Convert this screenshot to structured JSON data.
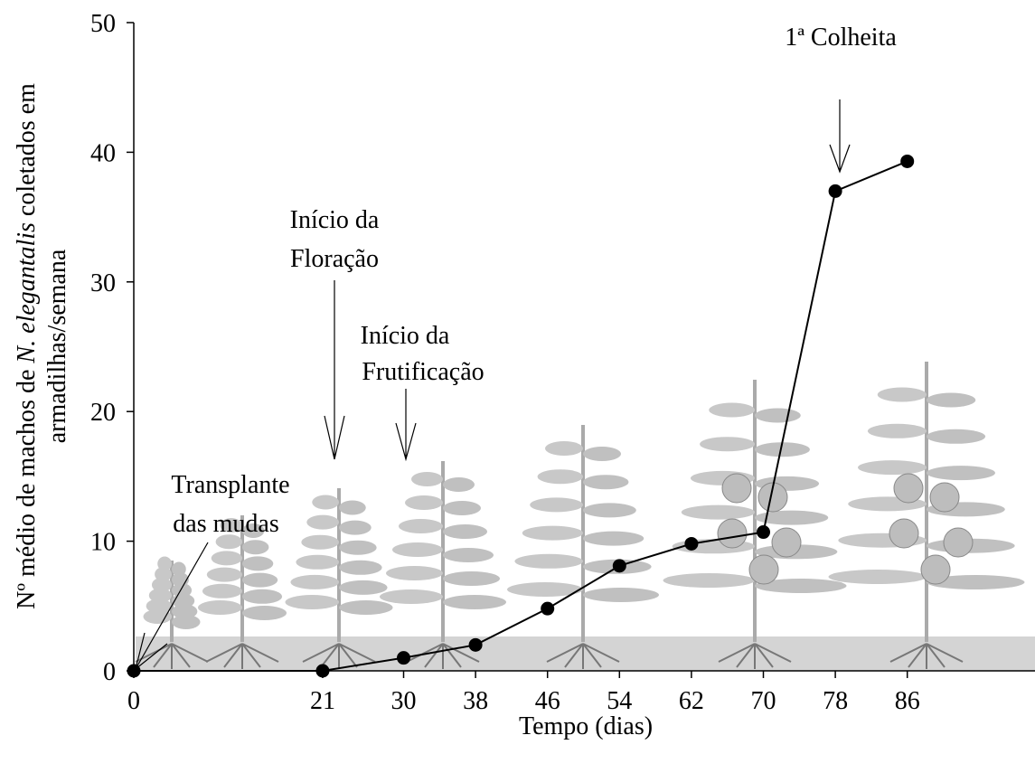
{
  "chart_data": {
    "type": "line",
    "x_label": "Tempo (dias)",
    "y_label": {
      "line1": [
        "Nº médio de machos de",
        "N. elegantalis",
        "coletados em"
      ],
      "line2": "armadilhas/semana"
    },
    "x": [
      0,
      21,
      30,
      38,
      46,
      54,
      62,
      70,
      78,
      86
    ],
    "series": [
      {
        "color": "#000000",
        "values": [
          0,
          0,
          1,
          2,
          4.8,
          8.1,
          9.8,
          10.7,
          37,
          39.3
        ]
      }
    ],
    "xlim": [
      0,
      100
    ],
    "xticks": [
      0,
      21,
      30,
      38,
      46,
      54,
      62,
      70,
      78,
      86
    ],
    "ylim": [
      0,
      50
    ],
    "yticks": [
      0,
      10,
      20,
      30,
      40,
      50
    ],
    "annotations": {
      "transplant": [
        "Transplante",
        "das mudas"
      ],
      "flowering": [
        "Início da",
        "Floração"
      ],
      "fruiting": [
        "Início da",
        "Frutificação"
      ],
      "harvest": "1ª Colheita"
    }
  }
}
